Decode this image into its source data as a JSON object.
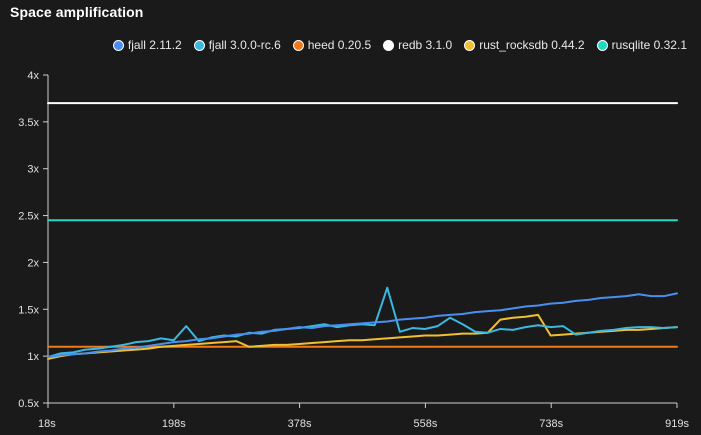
{
  "chart_data": {
    "type": "line",
    "title": "Space amplification",
    "xlabel": "",
    "ylabel": "",
    "x_ticks": [
      "18s",
      "198s",
      "378s",
      "558s",
      "738s",
      "919s"
    ],
    "y_ticks": [
      "0.5x",
      "1x",
      "1.5x",
      "2x",
      "2.5x",
      "3x",
      "3.5x",
      "4x"
    ],
    "y_tick_values": [
      0.5,
      1,
      1.5,
      2,
      2.5,
      3,
      3.5,
      4
    ],
    "xlim": [
      18,
      919
    ],
    "ylim": [
      0.5,
      4
    ],
    "grid": false,
    "legend_placement": "top-right",
    "series": [
      {
        "name": "fjall 2.11.2",
        "color": "#4a8ef0",
        "x": [
          18,
          36,
          54,
          72,
          90,
          108,
          126,
          144,
          162,
          180,
          198,
          216,
          234,
          252,
          270,
          288,
          306,
          324,
          342,
          360,
          378,
          396,
          414,
          432,
          450,
          468,
          486,
          504,
          522,
          540,
          558,
          576,
          594,
          612,
          630,
          648,
          666,
          684,
          702,
          720,
          738,
          756,
          774,
          792,
          810,
          828,
          846,
          864,
          882,
          900,
          919
        ],
        "y": [
          0.99,
          1.01,
          1.02,
          1.03,
          1.05,
          1.06,
          1.08,
          1.09,
          1.11,
          1.13,
          1.15,
          1.16,
          1.18,
          1.19,
          1.21,
          1.23,
          1.24,
          1.26,
          1.27,
          1.29,
          1.31,
          1.3,
          1.32,
          1.33,
          1.34,
          1.35,
          1.36,
          1.37,
          1.39,
          1.4,
          1.41,
          1.43,
          1.44,
          1.45,
          1.47,
          1.48,
          1.49,
          1.51,
          1.53,
          1.54,
          1.56,
          1.57,
          1.59,
          1.6,
          1.62,
          1.63,
          1.64,
          1.66,
          1.64,
          1.64,
          1.67
        ]
      },
      {
        "name": "fjall 3.0.0-rc.6",
        "color": "#3ab8e0",
        "x": [
          18,
          36,
          54,
          72,
          90,
          108,
          126,
          144,
          162,
          180,
          198,
          216,
          234,
          252,
          270,
          288,
          306,
          324,
          342,
          360,
          378,
          396,
          414,
          432,
          450,
          468,
          486,
          504,
          522,
          540,
          558,
          576,
          594,
          612,
          630,
          648,
          666,
          684,
          702,
          720,
          738,
          756,
          774,
          792,
          810,
          828,
          846,
          864,
          882,
          900,
          919
        ],
        "y": [
          0.99,
          1.03,
          1.04,
          1.07,
          1.08,
          1.1,
          1.12,
          1.15,
          1.16,
          1.19,
          1.17,
          1.32,
          1.16,
          1.2,
          1.22,
          1.21,
          1.25,
          1.24,
          1.28,
          1.29,
          1.3,
          1.32,
          1.34,
          1.31,
          1.33,
          1.34,
          1.33,
          1.73,
          1.26,
          1.3,
          1.29,
          1.32,
          1.41,
          1.34,
          1.26,
          1.25,
          1.29,
          1.28,
          1.31,
          1.33,
          1.31,
          1.32,
          1.23,
          1.25,
          1.27,
          1.28,
          1.3,
          1.31,
          1.31,
          1.3,
          1.31
        ]
      },
      {
        "name": "heed 0.20.5",
        "color": "#f07a1a",
        "x": [
          18,
          919
        ],
        "y": [
          1.1,
          1.1
        ]
      },
      {
        "name": "redb 3.1.0",
        "color": "#ffffff",
        "x": [
          18,
          919
        ],
        "y": [
          3.7,
          3.7
        ]
      },
      {
        "name": "rust_rocksdb 0.44.2",
        "color": "#f0c030",
        "x": [
          18,
          36,
          54,
          72,
          90,
          108,
          126,
          144,
          162,
          180,
          198,
          216,
          234,
          252,
          270,
          288,
          306,
          324,
          342,
          360,
          378,
          396,
          414,
          432,
          450,
          468,
          486,
          504,
          522,
          540,
          558,
          576,
          594,
          612,
          630,
          648,
          666,
          684,
          702,
          720,
          738,
          756,
          774,
          792,
          810,
          828,
          846,
          864,
          882,
          900,
          919
        ],
        "y": [
          0.97,
          1.0,
          1.02,
          1.03,
          1.04,
          1.05,
          1.06,
          1.07,
          1.08,
          1.1,
          1.11,
          1.12,
          1.13,
          1.14,
          1.15,
          1.16,
          1.1,
          1.11,
          1.12,
          1.12,
          1.13,
          1.14,
          1.15,
          1.16,
          1.17,
          1.17,
          1.18,
          1.19,
          1.2,
          1.21,
          1.22,
          1.22,
          1.23,
          1.24,
          1.24,
          1.25,
          1.39,
          1.41,
          1.42,
          1.44,
          1.22,
          1.23,
          1.24,
          1.25,
          1.26,
          1.27,
          1.28,
          1.28,
          1.29,
          1.3,
          1.31
        ]
      },
      {
        "name": "rusqlite 0.32.1",
        "color": "#1fd9c0",
        "x": [
          18,
          919
        ],
        "y": [
          2.45,
          2.45
        ]
      }
    ]
  }
}
